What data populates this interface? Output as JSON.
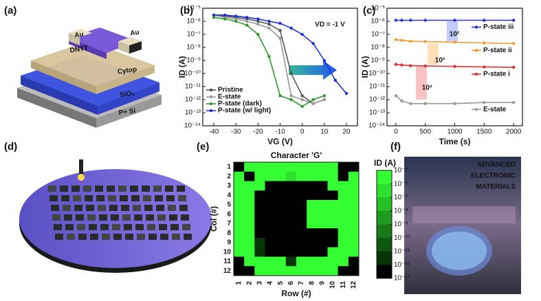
{
  "panels": {
    "labels": [
      "(a)",
      "(b)",
      "(c)",
      "(d)",
      "(e)",
      "(f)"
    ],
    "a_texts": [
      "Au",
      "DNTT",
      "Au",
      "Cytop",
      "SiO₂",
      "P+ Si"
    ],
    "f_texts": [
      "ADVANCED",
      "ELECTRONIC",
      "MATERIALS"
    ]
  },
  "chart_data": [
    {
      "type": "line",
      "xlabel": "VG (V)",
      "ylabel": "ID (A)",
      "yscale": "log",
      "x": [
        -40,
        -35,
        -30,
        -25,
        -20,
        -15,
        -10,
        -5,
        0,
        5,
        10,
        15,
        20
      ],
      "xlim": [
        -45,
        25
      ],
      "xticks": [
        -40,
        -30,
        -20,
        -10,
        0,
        10,
        20
      ],
      "ylim": [
        1e-14,
        1e-05
      ],
      "yticks": [
        {
          "value": 1e-14,
          "label": "10⁻¹⁴"
        },
        {
          "value": 1e-13,
          "label": "10⁻¹³"
        },
        {
          "value": 1e-12,
          "label": "10⁻¹²"
        },
        {
          "value": 1e-11,
          "label": "10⁻¹¹"
        },
        {
          "value": 1e-10,
          "label": "10⁻¹⁰"
        },
        {
          "value": 1e-09,
          "label": "10⁻⁹"
        },
        {
          "value": 1e-08,
          "label": "10⁻⁸"
        },
        {
          "value": 1e-07,
          "label": "10⁻⁷"
        },
        {
          "value": 1e-06,
          "label": "10⁻⁶"
        },
        {
          "value": 1e-05,
          "label": "10⁻⁵"
        }
      ],
      "annotations": [
        {
          "text": "VD = -1 V",
          "color": "#111111"
        }
      ],
      "legend": "lower left",
      "series": [
        {
          "name": "Pristine",
          "color": "#555555",
          "values": [
            3e-06,
            2.5e-06,
            2e-06,
            1.5e-06,
            1e-06,
            6e-07,
            2e-07,
            1e-10,
            2e-12,
            5e-13,
            1e-12,
            null,
            null
          ]
        },
        {
          "name": "E-state",
          "color": "#999999",
          "values": [
            3e-06,
            2e-06,
            1.5e-06,
            1e-06,
            6e-07,
            3e-07,
            5e-08,
            2e-12,
            1e-12,
            5e-13,
            1e-12,
            null,
            null
          ]
        },
        {
          "name": "P-state (dark)",
          "color": "#2e9a2e",
          "values": [
            2e-06,
            1.5e-06,
            1e-06,
            5e-07,
            1e-07,
            2e-09,
            2e-12,
            1e-12,
            3e-13,
            1e-12,
            2e-12,
            null,
            null
          ]
        },
        {
          "name": "P-state (w/ light)",
          "color": "#1f2fd6",
          "values": [
            3e-06,
            3e-06,
            2.5e-06,
            2e-06,
            1.5e-06,
            1e-06,
            7e-07,
            3e-07,
            1e-07,
            2e-08,
            1e-09,
            3e-11,
            3e-12
          ]
        }
      ]
    },
    {
      "type": "line",
      "xlabel": "Time (s)",
      "ylabel": "ID (A)",
      "yscale": "log",
      "x": [
        0,
        100,
        250,
        500,
        1000,
        1500,
        2000
      ],
      "xlim": [
        -150,
        2150
      ],
      "xticks": [
        0,
        500,
        1000,
        1500,
        2000
      ],
      "ylim": [
        1e-14,
        1e-05
      ],
      "yticks": [
        {
          "value": 1e-14,
          "label": "10⁻¹⁴"
        },
        {
          "value": 1e-13,
          "label": "10⁻¹³"
        },
        {
          "value": 1e-12,
          "label": "10⁻¹²"
        },
        {
          "value": 1e-11,
          "label": "10⁻¹¹"
        },
        {
          "value": 1e-10,
          "label": "10⁻¹⁰"
        },
        {
          "value": 1e-09,
          "label": "10⁻⁹"
        },
        {
          "value": 1e-08,
          "label": "10⁻⁸"
        },
        {
          "value": 1e-07,
          "label": "10⁻⁷"
        },
        {
          "value": 1e-06,
          "label": "10⁻⁶"
        },
        {
          "value": 1e-05,
          "label": "10⁻⁵"
        }
      ],
      "annotations": [
        {
          "text": "10²",
          "color": "#2233cc"
        },
        {
          "text": "10²",
          "color": "#f29a2e"
        },
        {
          "text": "10³",
          "color": "#e03030"
        }
      ],
      "legend": "right",
      "series": [
        {
          "name": "P-state iii",
          "color": "#2233dd",
          "values": [
            1.2e-06,
            1.2e-06,
            1.2e-06,
            1.2e-06,
            1.2e-06,
            1.2e-06,
            1.2e-06
          ]
        },
        {
          "name": "P-state ii",
          "color": "#f29a2e",
          "values": [
            4e-08,
            3.5e-08,
            3e-08,
            2.8e-08,
            2.5e-08,
            2.2e-08,
            2e-08
          ]
        },
        {
          "name": "P-state i",
          "color": "#e03030",
          "values": [
            5e-10,
            4.5e-10,
            4e-10,
            3.8e-10,
            3.5e-10,
            3.2e-10,
            3e-10
          ]
        },
        {
          "name": "E-state",
          "color": "#999999",
          "values": [
            2e-12,
            8e-13,
            5e-13,
            5e-13,
            5e-13,
            6e-13,
            6e-13
          ]
        }
      ]
    },
    {
      "type": "heatmap",
      "title": "Character 'G'",
      "xlabel": "Row (#)",
      "ylabel": "Col (#)",
      "categories": [
        "1",
        "2",
        "3",
        "4",
        "5",
        "6",
        "7",
        "8",
        "9",
        "10",
        "11",
        "12"
      ],
      "rows": [
        "1",
        "2",
        "3",
        "4",
        "5",
        "6",
        "7",
        "8",
        "9",
        "10",
        "11",
        "12"
      ],
      "colorbar_label": "ID (A)",
      "clim": [
        1e-13,
        1e-05
      ],
      "colorscale": [
        "#33ff33",
        "#2ee02e",
        "#26bf26",
        "#1f9c1f",
        "#177a17",
        "#0f570f",
        "#083508",
        "#000000"
      ],
      "cticks": [
        {
          "value": 1e-05,
          "label": "10⁻⁵"
        },
        {
          "value": 1e-06,
          "label": "10⁻⁶"
        },
        {
          "value": 1e-07,
          "label": "10⁻⁷"
        },
        {
          "value": 1e-08,
          "label": "10⁻⁸"
        },
        {
          "value": 1e-09,
          "label": "10⁻⁹"
        },
        {
          "value": 1e-10,
          "label": "10⁻¹⁰"
        },
        {
          "value": 1e-11,
          "label": "10⁻¹¹"
        },
        {
          "value": 1e-12,
          "label": "10⁻¹²"
        },
        {
          "value": 1e-13,
          "label": "10⁻¹³"
        }
      ],
      "values": [
        [
          3e-13,
          5e-06,
          5e-06,
          5e-06,
          5e-06,
          5e-06,
          5e-06,
          5e-06,
          5e-06,
          5e-06,
          3e-13,
          3e-13
        ],
        [
          5e-06,
          3e-13,
          5e-06,
          5e-06,
          5e-06,
          8e-07,
          5e-06,
          5e-06,
          5e-06,
          5e-06,
          3e-13,
          5e-06
        ],
        [
          5e-06,
          5e-06,
          5e-06,
          3e-13,
          3e-13,
          3e-13,
          3e-13,
          3e-13,
          3e-13,
          5e-06,
          5e-06,
          5e-06
        ],
        [
          5e-06,
          5e-06,
          3e-13,
          3e-13,
          3e-13,
          3e-13,
          3e-13,
          3e-13,
          3e-13,
          3e-13,
          5e-06,
          5e-06
        ],
        [
          5e-06,
          5e-06,
          3e-13,
          3e-13,
          3e-13,
          3e-13,
          3e-13,
          5e-06,
          5e-06,
          5e-06,
          5e-06,
          5e-06
        ],
        [
          5e-06,
          5e-06,
          3e-13,
          3e-13,
          3e-13,
          3e-13,
          3e-13,
          5e-06,
          5e-06,
          5e-06,
          5e-06,
          5e-06
        ],
        [
          5e-06,
          5e-06,
          3e-13,
          3e-13,
          3e-13,
          3e-13,
          3e-13,
          5e-06,
          5e-06,
          5e-06,
          5e-06,
          5e-06
        ],
        [
          5e-06,
          5e-06,
          3e-13,
          3e-13,
          3e-13,
          3e-13,
          3e-13,
          3e-13,
          3e-13,
          3e-13,
          5e-06,
          5e-06
        ],
        [
          5e-06,
          5e-06,
          2e-12,
          3e-13,
          3e-13,
          3e-13,
          3e-13,
          3e-13,
          3e-13,
          3e-13,
          5e-06,
          5e-06
        ],
        [
          5e-06,
          5e-06,
          2e-12,
          3e-13,
          3e-13,
          3e-13,
          3e-13,
          3e-13,
          3e-13,
          5e-06,
          5e-06,
          5e-06
        ],
        [
          3e-13,
          5e-06,
          5e-06,
          5e-06,
          5e-06,
          3e-12,
          5e-06,
          5e-06,
          5e-06,
          5e-06,
          5e-06,
          3e-13
        ],
        [
          3e-13,
          3e-13,
          5e-06,
          5e-06,
          5e-06,
          5e-06,
          5e-06,
          5e-06,
          5e-06,
          5e-06,
          3e-13,
          3e-13
        ]
      ]
    }
  ]
}
